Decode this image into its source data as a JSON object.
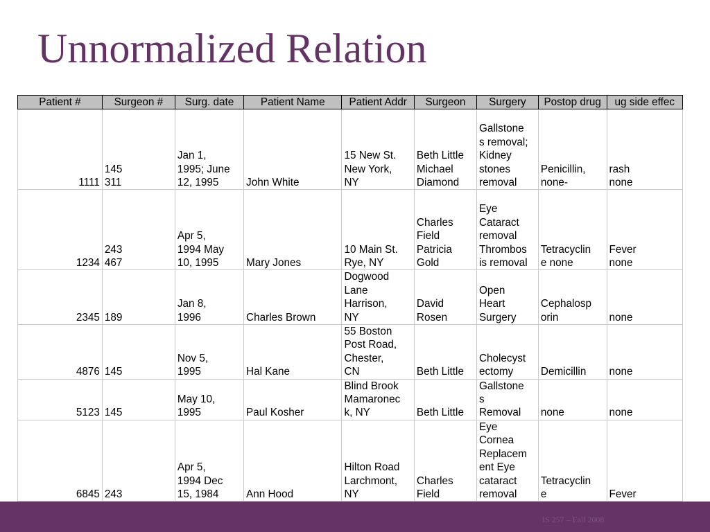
{
  "slide": {
    "title": "Unnormalized Relation",
    "footer": "IS 257 – Fall 2008"
  },
  "table": {
    "headers": [
      "Patient #",
      "Surgeon #",
      "Surg. date",
      "Patient Name",
      "Patient Addr",
      "Surgeon",
      "Surgery",
      "Postop drug",
      "ug side effec"
    ],
    "rows": [
      [
        "1111",
        "145\n311",
        "Jan 1,\n1995; June\n12, 1995",
        "John White",
        "15 New St.\nNew York,\nNY",
        "Beth Little\nMichael\nDiamond",
        "Gallstone\ns removal;\nKidney\nstones\nremoval",
        "Penicillin,\nnone-",
        "rash\nnone"
      ],
      [
        "1234",
        "243\n467",
        "Apr 5,\n1994 May\n10, 1995",
        "Mary Jones",
        "10 Main St.\nRye, NY",
        "Charles\nField\nPatricia\nGold",
        "Eye\nCataract\nremoval\nThrombos\nis removal",
        "Tetracyclin\ne none",
        "Fever\nnone"
      ],
      [
        "2345",
        "189",
        "Jan 8,\n1996",
        "Charles Brown",
        "Dogwood\nLane\nHarrison,\nNY",
        "David\nRosen",
        "Open\nHeart\nSurgery",
        "Cephalosp\norin",
        "none"
      ],
      [
        "4876",
        "145",
        "Nov 5,\n1995",
        "Hal Kane",
        "55 Boston\nPost Road,\nChester,\nCN",
        "Beth Little",
        "Cholecyst\nectomy",
        "Demicillin",
        "none"
      ],
      [
        "5123",
        "145",
        "May 10,\n1995",
        "Paul Kosher",
        "Blind Brook\nMamaronec\nk, NY",
        "Beth Little",
        "Gallstone\ns\nRemoval",
        "none",
        "none"
      ],
      [
        "6845",
        "243",
        "Apr 5,\n1994  Dec\n15, 1984",
        "Ann Hood",
        "Hilton Road\nLarchmont,\nNY",
        "Charles\nField",
        "Eye\nCornea\nReplacem\nent Eye\ncataract\nremoval",
        "Tetracyclin\ne",
        "Fever"
      ]
    ]
  }
}
